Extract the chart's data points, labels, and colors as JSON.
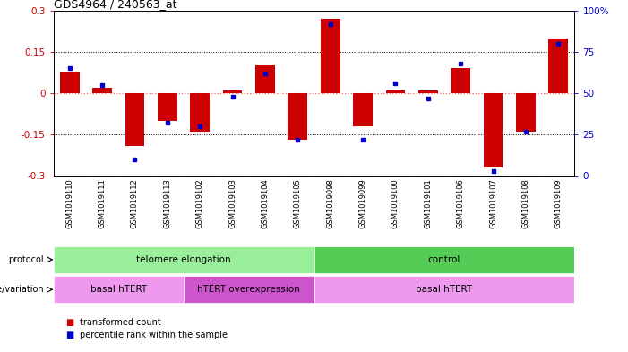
{
  "title": "GDS4964 / 240563_at",
  "samples": [
    "GSM1019110",
    "GSM1019111",
    "GSM1019112",
    "GSM1019113",
    "GSM1019102",
    "GSM1019103",
    "GSM1019104",
    "GSM1019105",
    "GSM1019098",
    "GSM1019099",
    "GSM1019100",
    "GSM1019101",
    "GSM1019106",
    "GSM1019107",
    "GSM1019108",
    "GSM1019109"
  ],
  "bar_values": [
    0.08,
    0.02,
    -0.19,
    -0.1,
    -0.14,
    0.01,
    0.1,
    -0.17,
    0.27,
    -0.12,
    0.01,
    0.01,
    0.09,
    -0.27,
    -0.14,
    0.2
  ],
  "dot_values": [
    65,
    55,
    10,
    32,
    30,
    48,
    62,
    22,
    92,
    22,
    56,
    47,
    68,
    3,
    27,
    80
  ],
  "ylim": [
    -0.3,
    0.3
  ],
  "yticks_left": [
    -0.3,
    -0.15,
    0.0,
    0.15,
    0.3
  ],
  "yticks_right": [
    0,
    25,
    50,
    75,
    100
  ],
  "bar_color": "#cc0000",
  "dot_color": "#0000cc",
  "zero_line_color": "#ff6666",
  "grid_color": "#000000",
  "protocol_groups": [
    {
      "label": "telomere elongation",
      "start": 0,
      "end": 8,
      "color": "#99ee99"
    },
    {
      "label": "control",
      "start": 8,
      "end": 16,
      "color": "#55cc55"
    }
  ],
  "genotype_groups": [
    {
      "label": "basal hTERT",
      "start": 0,
      "end": 4,
      "color": "#ee99ee"
    },
    {
      "label": "hTERT overexpression",
      "start": 4,
      "end": 8,
      "color": "#cc55cc"
    },
    {
      "label": "basal hTERT",
      "start": 8,
      "end": 16,
      "color": "#ee99ee"
    }
  ],
  "bg_color": "#ffffff",
  "plot_bg": "#ffffff",
  "tick_label_row_color": "#cccccc",
  "bar_width": 0.6
}
